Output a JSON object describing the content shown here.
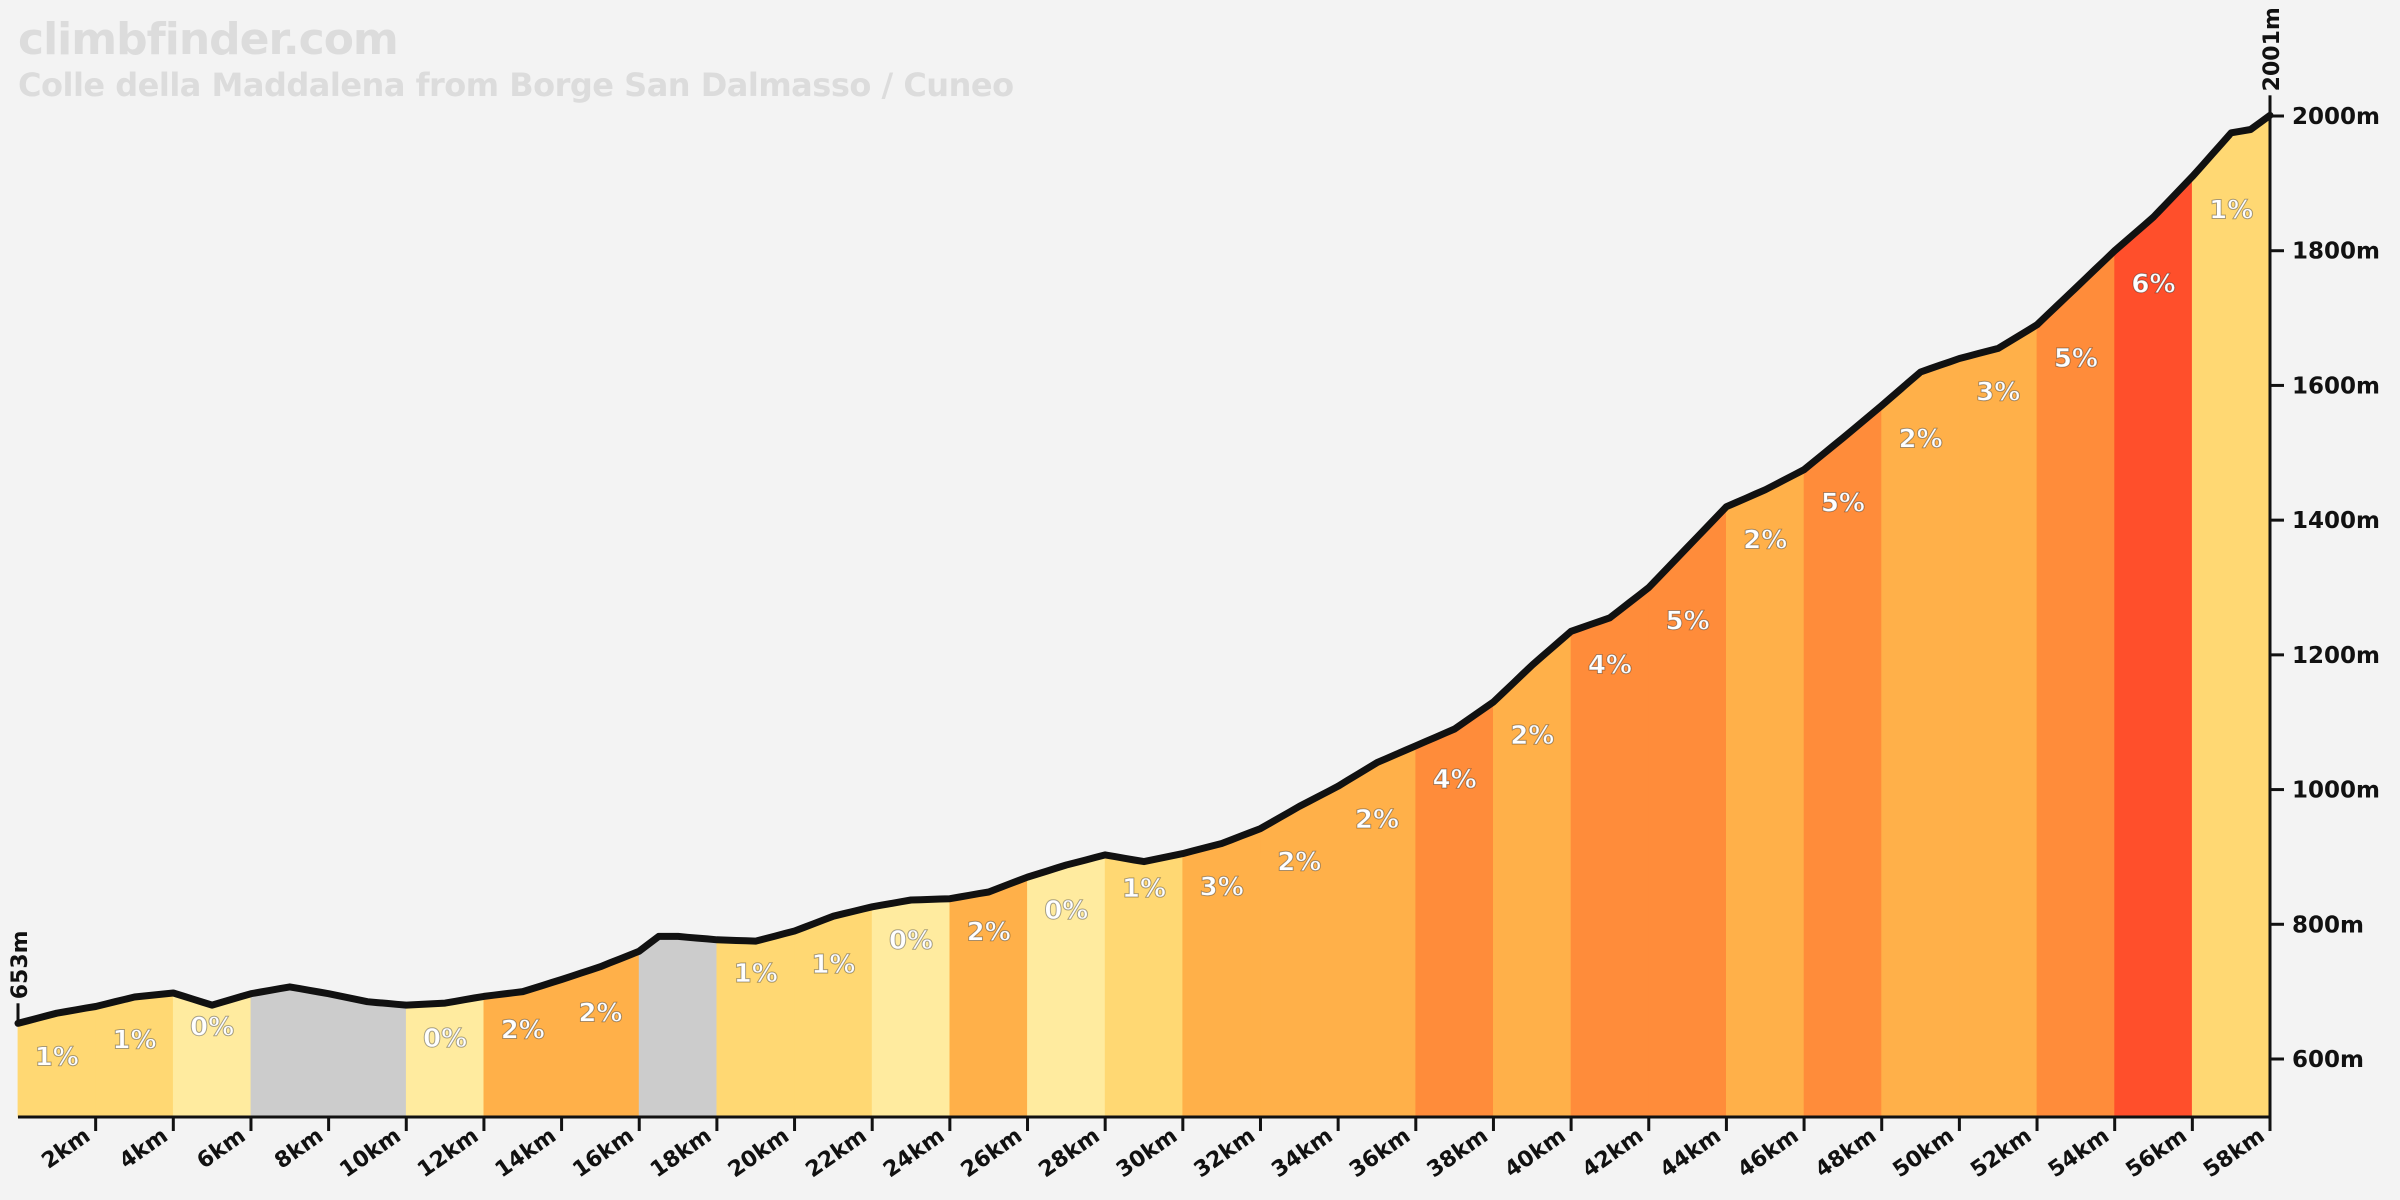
{
  "brand": "climbfinder.com",
  "subtitle": "Colle della Maddalena from Borge San Dalmasso / Cuneo",
  "chart_data": {
    "type": "area",
    "title": "Colle della Maddalena from Borge San Dalmasso / Cuneo",
    "xlabel": "",
    "ylabel": "",
    "xlim": [
      0,
      58
    ],
    "ylim": [
      510,
      2001
    ],
    "x_unit": "km",
    "y_unit": "m",
    "x_ticks": [
      "2km",
      "4km",
      "6km",
      "8km",
      "10km",
      "12km",
      "14km",
      "16km",
      "18km",
      "20km",
      "22km",
      "24km",
      "26km",
      "28km",
      "30km",
      "32km",
      "34km",
      "36km",
      "38km",
      "40km",
      "42km",
      "44km",
      "46km",
      "48km",
      "50km",
      "52km",
      "54km",
      "56km",
      "58km"
    ],
    "y_ticks": [
      "600m",
      "800m",
      "1000m",
      "1200m",
      "1400m",
      "1600m",
      "1800m",
      "2000m"
    ],
    "start_label": "653m",
    "end_label": "2001m",
    "profile": [
      [
        0,
        653
      ],
      [
        1,
        668
      ],
      [
        2,
        678
      ],
      [
        3,
        692
      ],
      [
        4,
        698
      ],
      [
        5,
        680
      ],
      [
        6,
        697
      ],
      [
        7,
        707
      ],
      [
        8,
        697
      ],
      [
        9,
        685
      ],
      [
        10,
        680
      ],
      [
        11,
        683
      ],
      [
        12,
        693
      ],
      [
        13,
        700
      ],
      [
        14,
        718
      ],
      [
        15,
        737
      ],
      [
        16,
        760
      ],
      [
        16.5,
        782
      ],
      [
        17,
        782
      ],
      [
        18,
        777
      ],
      [
        19,
        775
      ],
      [
        20,
        790
      ],
      [
        21,
        812
      ],
      [
        22,
        826
      ],
      [
        23,
        836
      ],
      [
        24,
        838
      ],
      [
        25,
        848
      ],
      [
        26,
        870
      ],
      [
        27,
        888
      ],
      [
        28,
        903
      ],
      [
        29,
        893
      ],
      [
        30,
        905
      ],
      [
        31,
        920
      ],
      [
        32,
        942
      ],
      [
        33,
        975
      ],
      [
        34,
        1005
      ],
      [
        35,
        1040
      ],
      [
        36,
        1065
      ],
      [
        37,
        1090
      ],
      [
        38,
        1130
      ],
      [
        39,
        1185
      ],
      [
        40,
        1235
      ],
      [
        41,
        1255
      ],
      [
        42,
        1300
      ],
      [
        43,
        1360
      ],
      [
        44,
        1420
      ],
      [
        45,
        1445
      ],
      [
        46,
        1475
      ],
      [
        47,
        1522
      ],
      [
        48,
        1570
      ],
      [
        49,
        1620
      ],
      [
        50,
        1640
      ],
      [
        51,
        1655
      ],
      [
        52,
        1690
      ],
      [
        53,
        1745
      ],
      [
        54,
        1800
      ],
      [
        55,
        1850
      ],
      [
        56,
        1910
      ],
      [
        57,
        1975
      ],
      [
        57.5,
        1980
      ],
      [
        58,
        2001
      ]
    ],
    "segments": [
      {
        "label": "1%",
        "grade": 1,
        "color": "#ffd873"
      },
      {
        "label": "1%",
        "grade": 1,
        "color": "#ffd873"
      },
      {
        "label": "0%",
        "grade": 0,
        "color": "#ffeb9f"
      },
      {
        "label": "",
        "grade": -1,
        "color": "#cccccc"
      },
      {
        "label": "",
        "grade": -1,
        "color": "#cccccc"
      },
      {
        "label": "0%",
        "grade": 0,
        "color": "#ffeb9f"
      },
      {
        "label": "2%",
        "grade": 2,
        "color": "#ffb049"
      },
      {
        "label": "2%",
        "grade": 2,
        "color": "#ffb049"
      },
      {
        "label": "",
        "grade": -1,
        "color": "#cccccc"
      },
      {
        "label": "1%",
        "grade": 1,
        "color": "#ffd873"
      },
      {
        "label": "1%",
        "grade": 1,
        "color": "#ffd873"
      },
      {
        "label": "0%",
        "grade": 0,
        "color": "#ffeb9f"
      },
      {
        "label": "2%",
        "grade": 2,
        "color": "#ffb049"
      },
      {
        "label": "0%",
        "grade": 0,
        "color": "#ffeb9f"
      },
      {
        "label": "1%",
        "grade": 1,
        "color": "#ffd873"
      },
      {
        "label": "3%",
        "grade": 3,
        "color": "#ffb049"
      },
      {
        "label": "2%",
        "grade": 2,
        "color": "#ffb049"
      },
      {
        "label": "2%",
        "grade": 2,
        "color": "#ffb049"
      },
      {
        "label": "4%",
        "grade": 4,
        "color": "#ff8c3a"
      },
      {
        "label": "2%",
        "grade": 2,
        "color": "#ffb049"
      },
      {
        "label": "4%",
        "grade": 4,
        "color": "#ff8c3a"
      },
      {
        "label": "5%",
        "grade": 5,
        "color": "#ff8c3a"
      },
      {
        "label": "2%",
        "grade": 2,
        "color": "#ffb049"
      },
      {
        "label": "5%",
        "grade": 5,
        "color": "#ff8c3a"
      },
      {
        "label": "2%",
        "grade": 2,
        "color": "#ffb049"
      },
      {
        "label": "3%",
        "grade": 3,
        "color": "#ffb049"
      },
      {
        "label": "5%",
        "grade": 5,
        "color": "#ff8c3a"
      },
      {
        "label": "6%",
        "grade": 6,
        "color": "#ff4f2b"
      },
      {
        "label": "1%",
        "grade": 1,
        "color": "#ffd873"
      }
    ],
    "grid": false,
    "legend": "none"
  }
}
